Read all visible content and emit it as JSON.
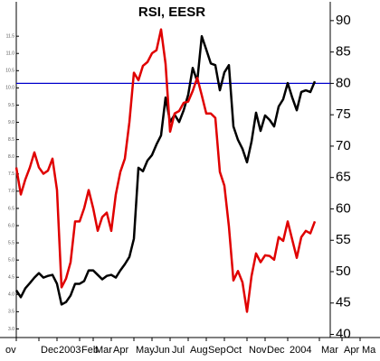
{
  "chart_data": {
    "type": "line",
    "title": "RSI, EESR",
    "categories": [
      "ov",
      null,
      null,
      null,
      null,
      "Dec",
      null,
      null,
      null,
      "2003",
      null,
      null,
      null,
      null,
      "Feb",
      null,
      null,
      "Mar",
      null,
      null,
      null,
      "Apr",
      null,
      null,
      null,
      null,
      "May",
      null,
      null,
      null,
      "Jun",
      null,
      null,
      null,
      "Jul",
      null,
      null,
      null,
      "Aug",
      null,
      null,
      null,
      "Sep",
      null,
      null,
      null,
      "Oct",
      null,
      null,
      null,
      null,
      "Nov",
      null,
      null,
      null,
      "Dec",
      null,
      null,
      null,
      null,
      "2004",
      null,
      null,
      null,
      null,
      null,
      null,
      "Mar",
      null,
      null,
      null,
      null,
      "Apr",
      null,
      null,
      null,
      "Ma",
      null,
      null,
      null
    ],
    "series": [
      {
        "color": "#000000",
        "axis": "y",
        "values": [
          4.12,
          3.92,
          4.18,
          4.33,
          4.49,
          4.62,
          4.49,
          4.54,
          4.57,
          4.31,
          3.71,
          3.78,
          3.97,
          4.31,
          4.31,
          4.39,
          4.7,
          4.7,
          4.57,
          4.44,
          4.54,
          4.57,
          4.49,
          4.7,
          4.88,
          5.09,
          5.62,
          7.68,
          7.58,
          7.89,
          8.05,
          8.36,
          8.62,
          9.72,
          9.01,
          9.22,
          9.01,
          9.35,
          9.8,
          10.58,
          10.19,
          11.5,
          11.11,
          10.71,
          10.66,
          9.93,
          10.45,
          10.66,
          8.88,
          8.49,
          8.23,
          7.84,
          8.44,
          9.28,
          8.75,
          9.2,
          9.07,
          8.88,
          9.46,
          9.67,
          10.14,
          9.72,
          9.35,
          9.88,
          9.93,
          9.88,
          10.19,
          null,
          null,
          null,
          null,
          null,
          null,
          null,
          null,
          null,
          null,
          null,
          null,
          null
        ]
      },
      {
        "color": "#e00000",
        "axis": "y2",
        "values": [
          66.6,
          62.3,
          64.7,
          66.6,
          69.0,
          66.6,
          65.6,
          66.1,
          68.0,
          63.0,
          47.5,
          48.9,
          51.5,
          58.0,
          58.0,
          60.1,
          63.0,
          60.1,
          56.5,
          58.7,
          59.4,
          56.5,
          62.3,
          65.9,
          68.0,
          73.8,
          81.7,
          80.5,
          82.8,
          83.4,
          84.8,
          85.3,
          88.6,
          83.1,
          72.3,
          75.2,
          75.6,
          76.9,
          77.1,
          78.8,
          80.9,
          78.1,
          75.2,
          75.2,
          74.5,
          65.9,
          63.7,
          57.2,
          48.6,
          50.1,
          48.3,
          43.6,
          49.3,
          52.9,
          51.5,
          52.6,
          52.5,
          51.9,
          55.5,
          54.9,
          58.0,
          55.1,
          52.2,
          55.5,
          56.5,
          56.1,
          58.0,
          null,
          null,
          null,
          null,
          null,
          null,
          null,
          null,
          null,
          null,
          null,
          null,
          null
        ]
      }
    ],
    "ylim": [
      2.75,
      12.5
    ],
    "yticks": [
      {
        "value": 3,
        "label": "3.0"
      },
      3.5,
      {
        "value": 4,
        "label": "4.0"
      },
      4.5,
      {
        "value": 5,
        "label": "5.0"
      },
      5.5,
      {
        "value": 6,
        "label": "6.0"
      },
      6.5,
      {
        "value": 7,
        "label": "7.0"
      },
      7.5,
      {
        "value": 8,
        "label": "8.0"
      },
      8.5,
      {
        "value": 9,
        "label": "9.0"
      },
      9.5,
      {
        "value": 10,
        "label": "10.0"
      },
      10.5,
      {
        "value": 11,
        "label": "11.0"
      },
      11.5
    ],
    "y2lim": [
      39.5,
      93
    ],
    "y2ticks": [
      40,
      45,
      50,
      55,
      60,
      65,
      70,
      75,
      80,
      85,
      90
    ],
    "hline": {
      "value": 80,
      "axis": "y2",
      "color": "#0000cc"
    }
  }
}
